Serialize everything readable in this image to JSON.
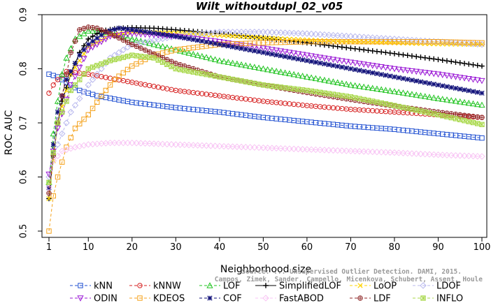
{
  "chart_data": {
    "type": "line",
    "title": "Wilt_withoutdupl_02_v05",
    "xlabel": "Neighborhood size",
    "ylabel": "ROC AUC",
    "xlim": [
      1,
      100
    ],
    "ylim": [
      0.5,
      0.9
    ],
    "x_ticks": [
      1,
      10,
      20,
      30,
      40,
      50,
      60,
      70,
      80,
      90,
      100
    ],
    "y_ticks": [
      0.5,
      0.6,
      0.7,
      0.8,
      0.9
    ],
    "grid": false,
    "legend_position": "bottom",
    "watermark": [
      "Source: ... Unsupervised Outlier Detection. DAMI, 2015.",
      "Campos, Zimek, Sander, Campello, Micenkova, Schubert, Assent, Houle"
    ],
    "series": [
      {
        "name": "kNN",
        "color": "#1f4fd1",
        "marker": "square",
        "dash": "4,3",
        "points": [
          [
            1,
            0.79
          ],
          [
            3,
            0.785
          ],
          [
            5,
            0.775
          ],
          [
            8,
            0.76
          ],
          [
            12,
            0.75
          ],
          [
            20,
            0.738
          ],
          [
            30,
            0.728
          ],
          [
            40,
            0.72
          ],
          [
            50,
            0.71
          ],
          [
            60,
            0.702
          ],
          [
            70,
            0.694
          ],
          [
            80,
            0.688
          ],
          [
            90,
            0.68
          ],
          [
            100,
            0.672
          ]
        ]
      },
      {
        "name": "kNNW",
        "color": "#d62020",
        "marker": "circle",
        "dash": "4,3",
        "points": [
          [
            1,
            0.755
          ],
          [
            2,
            0.77
          ],
          [
            3,
            0.78
          ],
          [
            5,
            0.795
          ],
          [
            10,
            0.79
          ],
          [
            20,
            0.775
          ],
          [
            30,
            0.76
          ],
          [
            40,
            0.75
          ],
          [
            50,
            0.74
          ],
          [
            60,
            0.732
          ],
          [
            70,
            0.725
          ],
          [
            80,
            0.72
          ],
          [
            90,
            0.715
          ],
          [
            100,
            0.71
          ]
        ]
      },
      {
        "name": "LOF",
        "color": "#22c422",
        "marker": "triangle-up",
        "dash": "4,3",
        "points": [
          [
            1,
            0.59
          ],
          [
            2,
            0.68
          ],
          [
            3,
            0.74
          ],
          [
            4,
            0.79
          ],
          [
            5,
            0.82
          ],
          [
            7,
            0.855
          ],
          [
            10,
            0.87
          ],
          [
            12,
            0.87
          ],
          [
            15,
            0.865
          ],
          [
            20,
            0.855
          ],
          [
            30,
            0.835
          ],
          [
            40,
            0.815
          ],
          [
            50,
            0.8
          ],
          [
            60,
            0.785
          ],
          [
            70,
            0.77
          ],
          [
            80,
            0.758
          ],
          [
            90,
            0.745
          ],
          [
            100,
            0.733
          ]
        ]
      },
      {
        "name": "SimplifiedLOF",
        "color": "#000000",
        "marker": "plus",
        "dash": "",
        "points": [
          [
            1,
            0.56
          ],
          [
            2,
            0.64
          ],
          [
            3,
            0.7
          ],
          [
            4,
            0.74
          ],
          [
            6,
            0.79
          ],
          [
            8,
            0.83
          ],
          [
            10,
            0.855
          ],
          [
            13,
            0.87
          ],
          [
            17,
            0.875
          ],
          [
            20,
            0.876
          ],
          [
            25,
            0.875
          ],
          [
            30,
            0.872
          ],
          [
            40,
            0.865
          ],
          [
            50,
            0.857
          ],
          [
            60,
            0.848
          ],
          [
            70,
            0.838
          ],
          [
            80,
            0.828
          ],
          [
            90,
            0.817
          ],
          [
            100,
            0.805
          ]
        ]
      },
      {
        "name": "LoOP",
        "color": "#ffd400",
        "marker": "x",
        "dash": "4,3",
        "points": [
          [
            1,
            0.56
          ],
          [
            3,
            0.7
          ],
          [
            6,
            0.79
          ],
          [
            10,
            0.84
          ],
          [
            15,
            0.862
          ],
          [
            20,
            0.868
          ],
          [
            30,
            0.866
          ],
          [
            40,
            0.862
          ],
          [
            50,
            0.857
          ],
          [
            60,
            0.853
          ],
          [
            70,
            0.85
          ],
          [
            80,
            0.848
          ],
          [
            90,
            0.846
          ],
          [
            100,
            0.845
          ]
        ]
      },
      {
        "name": "LDOF",
        "color": "#b9b9ee",
        "marker": "diamond",
        "dash": "4,3",
        "points": [
          [
            1,
            0.6
          ],
          [
            3,
            0.66
          ],
          [
            6,
            0.72
          ],
          [
            10,
            0.77
          ],
          [
            15,
            0.82
          ],
          [
            20,
            0.845
          ],
          [
            30,
            0.86
          ],
          [
            40,
            0.868
          ],
          [
            50,
            0.868
          ],
          [
            60,
            0.865
          ],
          [
            70,
            0.86
          ],
          [
            80,
            0.855
          ],
          [
            90,
            0.85
          ],
          [
            100,
            0.845
          ]
        ]
      },
      {
        "name": "ODIN",
        "color": "#9b1bd6",
        "marker": "triangle-down",
        "dash": "4,3",
        "points": [
          [
            1,
            0.605
          ],
          [
            3,
            0.69
          ],
          [
            6,
            0.77
          ],
          [
            10,
            0.835
          ],
          [
            15,
            0.86
          ],
          [
            20,
            0.865
          ],
          [
            30,
            0.86
          ],
          [
            40,
            0.85
          ],
          [
            50,
            0.838
          ],
          [
            60,
            0.825
          ],
          [
            70,
            0.812
          ],
          [
            80,
            0.8
          ],
          [
            90,
            0.79
          ],
          [
            100,
            0.778
          ]
        ]
      },
      {
        "name": "KDEOS",
        "color": "#f4a21c",
        "marker": "square",
        "dash": "4,3",
        "points": [
          [
            1,
            0.5
          ],
          [
            2,
            0.565
          ],
          [
            3,
            0.6
          ],
          [
            5,
            0.655
          ],
          [
            7,
            0.69
          ],
          [
            10,
            0.715
          ],
          [
            13,
            0.75
          ],
          [
            16,
            0.78
          ],
          [
            20,
            0.805
          ],
          [
            25,
            0.825
          ],
          [
            30,
            0.835
          ],
          [
            40,
            0.845
          ],
          [
            50,
            0.848
          ],
          [
            60,
            0.85
          ],
          [
            70,
            0.85
          ],
          [
            80,
            0.85
          ],
          [
            90,
            0.85
          ],
          [
            100,
            0.848
          ]
        ]
      },
      {
        "name": "COF",
        "color": "#12127a",
        "marker": "asterisk",
        "dash": "4,3",
        "points": [
          [
            1,
            0.58
          ],
          [
            2,
            0.66
          ],
          [
            3,
            0.72
          ],
          [
            5,
            0.78
          ],
          [
            8,
            0.825
          ],
          [
            10,
            0.845
          ],
          [
            14,
            0.868
          ],
          [
            17,
            0.875
          ],
          [
            20,
            0.872
          ],
          [
            30,
            0.86
          ],
          [
            40,
            0.845
          ],
          [
            50,
            0.83
          ],
          [
            60,
            0.815
          ],
          [
            70,
            0.8
          ],
          [
            80,
            0.785
          ],
          [
            90,
            0.77
          ],
          [
            100,
            0.755
          ]
        ]
      },
      {
        "name": "FastABOD",
        "color": "#f8c4f4",
        "marker": "diamond",
        "dash": "4,3",
        "points": [
          [
            1,
            0.58
          ],
          [
            2,
            0.63
          ],
          [
            4,
            0.648
          ],
          [
            7,
            0.655
          ],
          [
            10,
            0.66
          ],
          [
            15,
            0.663
          ],
          [
            20,
            0.663
          ],
          [
            30,
            0.66
          ],
          [
            40,
            0.657
          ],
          [
            50,
            0.654
          ],
          [
            60,
            0.651
          ],
          [
            70,
            0.648
          ],
          [
            80,
            0.645
          ],
          [
            90,
            0.641
          ],
          [
            100,
            0.638
          ]
        ]
      },
      {
        "name": "LDF",
        "color": "#8f2a2a",
        "marker": "circle-plus",
        "dash": "4,3",
        "points": [
          [
            1,
            0.57
          ],
          [
            2,
            0.64
          ],
          [
            3,
            0.7
          ],
          [
            4,
            0.75
          ],
          [
            6,
            0.83
          ],
          [
            8,
            0.872
          ],
          [
            10,
            0.877
          ],
          [
            12,
            0.875
          ],
          [
            15,
            0.865
          ],
          [
            20,
            0.845
          ],
          [
            30,
            0.81
          ],
          [
            40,
            0.785
          ],
          [
            50,
            0.77
          ],
          [
            60,
            0.756
          ],
          [
            70,
            0.743
          ],
          [
            80,
            0.731
          ],
          [
            90,
            0.72
          ],
          [
            100,
            0.71
          ]
        ]
      },
      {
        "name": "INFLO",
        "color": "#a8d84a",
        "marker": "star-box",
        "dash": "4,3",
        "points": [
          [
            1,
            0.59
          ],
          [
            3,
            0.7
          ],
          [
            6,
            0.76
          ],
          [
            10,
            0.8
          ],
          [
            15,
            0.815
          ],
          [
            20,
            0.825
          ],
          [
            25,
            0.82
          ],
          [
            30,
            0.8
          ],
          [
            40,
            0.785
          ],
          [
            50,
            0.77
          ],
          [
            60,
            0.76
          ],
          [
            70,
            0.748
          ],
          [
            80,
            0.732
          ],
          [
            90,
            0.715
          ],
          [
            100,
            0.697
          ]
        ]
      }
    ]
  }
}
